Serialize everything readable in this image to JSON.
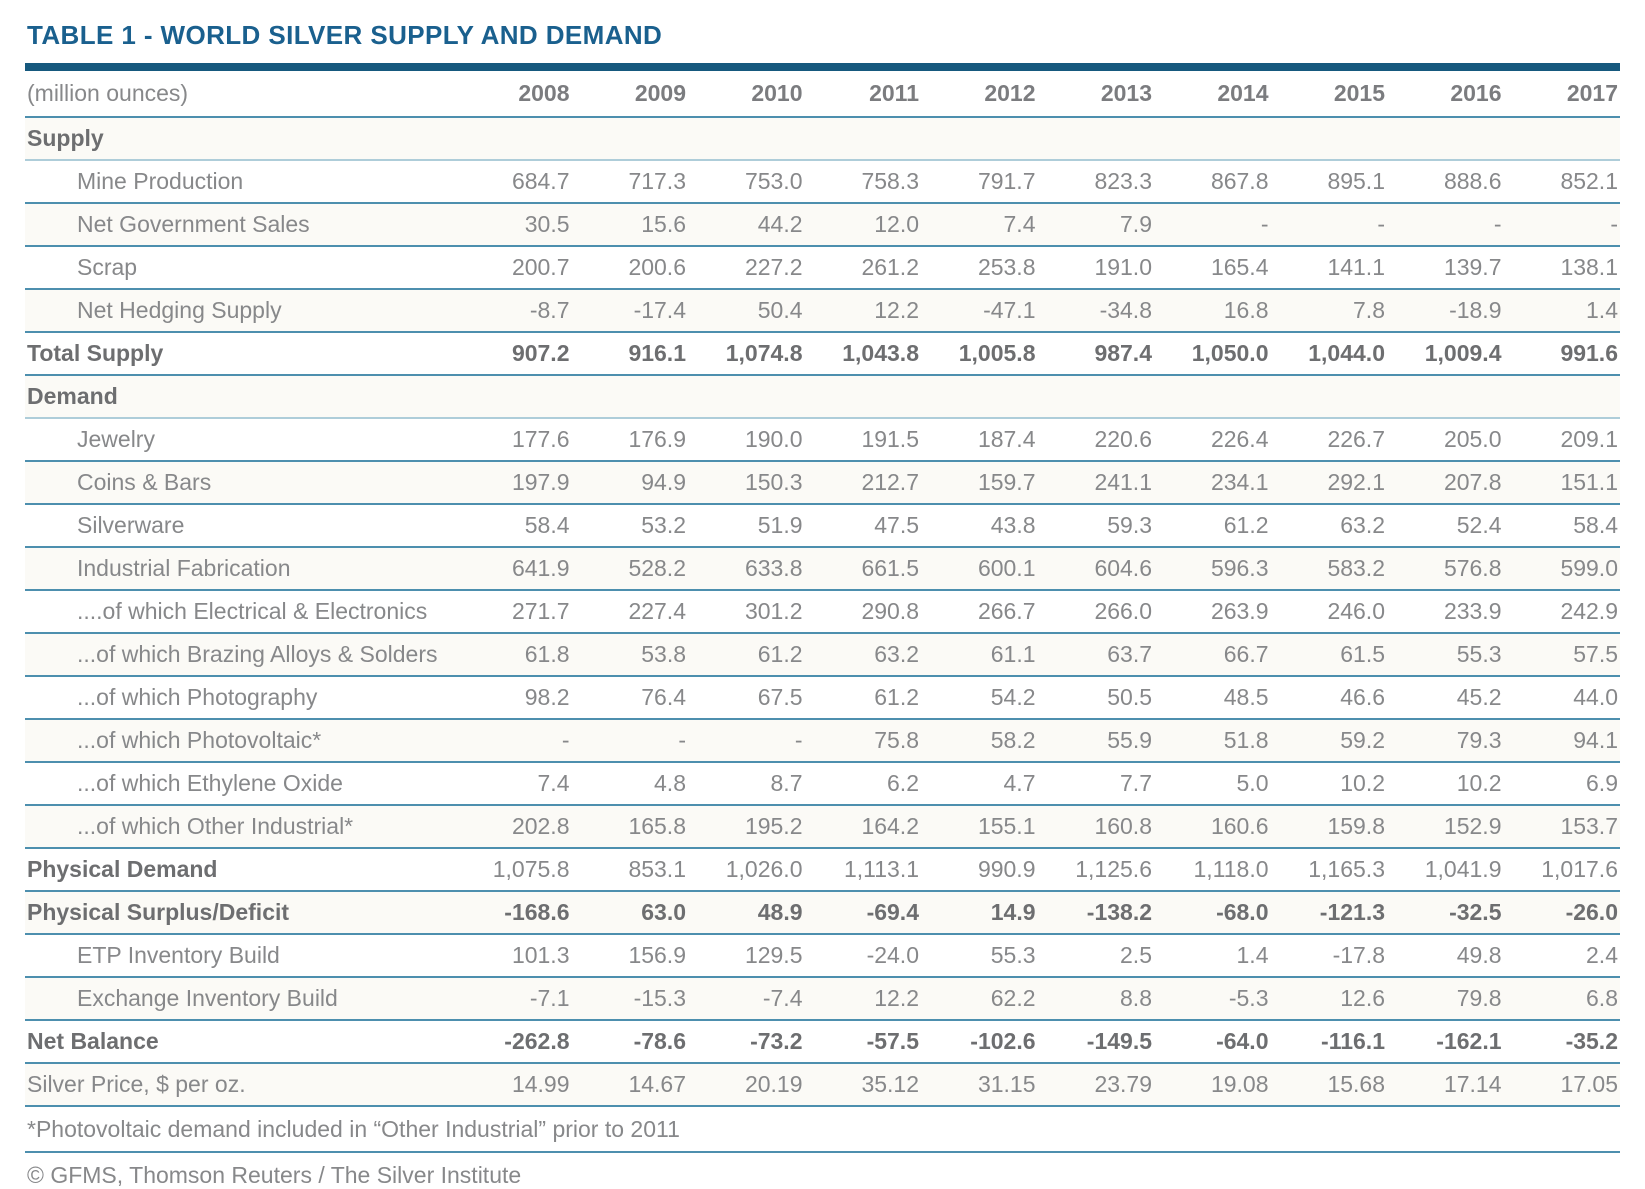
{
  "title": "TABLE 1 - WORLD SILVER SUPPLY AND DEMAND",
  "colors": {
    "title_blue": "#1a608e",
    "heavy_rule_blue": "#16597e",
    "row_line_blue": "#4d8fae",
    "section_line_blue": "#aecdd9",
    "text_gray": "#87888a",
    "bold_text_gray": "#6d6e70"
  },
  "footnote": "*Photovoltaic demand included in “Other Industrial” prior to 2011",
  "copyright": "© GFMS, Thomson Reuters / The Silver Institute",
  "chart_data": {
    "type": "table",
    "title": "TABLE 1 - WORLD SILVER SUPPLY AND DEMAND",
    "unit_label": "(million ounces)",
    "columns": [
      "2008",
      "2009",
      "2010",
      "2011",
      "2012",
      "2013",
      "2014",
      "2015",
      "2016",
      "2017"
    ],
    "rows": [
      {
        "label": "Supply",
        "style": "section",
        "values": []
      },
      {
        "label": "Mine Production",
        "style": "sub",
        "values": [
          "684.7",
          "717.3",
          "753.0",
          "758.3",
          "791.7",
          "823.3",
          "867.8",
          "895.1",
          "888.6",
          "852.1"
        ]
      },
      {
        "label": "Net Government Sales",
        "style": "sub",
        "values": [
          "30.5",
          "15.6",
          "44.2",
          "12.0",
          "7.4",
          "7.9",
          "-",
          "-",
          "-",
          "-"
        ]
      },
      {
        "label": "Scrap",
        "style": "sub",
        "values": [
          "200.7",
          "200.6",
          "227.2",
          "261.2",
          "253.8",
          "191.0",
          "165.4",
          "141.1",
          "139.7",
          "138.1"
        ]
      },
      {
        "label": "Net Hedging Supply",
        "style": "sub",
        "values": [
          "-8.7",
          "-17.4",
          "50.4",
          "12.2",
          "-47.1",
          "-34.8",
          "16.8",
          "7.8",
          "-18.9",
          "1.4"
        ]
      },
      {
        "label": "Total Supply",
        "style": "total",
        "values": [
          "907.2",
          "916.1",
          "1,074.8",
          "1,043.8",
          "1,005.8",
          "987.4",
          "1,050.0",
          "1,044.0",
          "1,009.4",
          "991.6"
        ]
      },
      {
        "label": "Demand",
        "style": "section",
        "values": []
      },
      {
        "label": "Jewelry",
        "style": "sub",
        "values": [
          "177.6",
          "176.9",
          "190.0",
          "191.5",
          "187.4",
          "220.6",
          "226.4",
          "226.7",
          "205.0",
          "209.1"
        ]
      },
      {
        "label": "Coins & Bars",
        "style": "sub",
        "values": [
          "197.9",
          "94.9",
          "150.3",
          "212.7",
          "159.7",
          "241.1",
          "234.1",
          "292.1",
          "207.8",
          "151.1"
        ]
      },
      {
        "label": "Silverware",
        "style": "sub",
        "values": [
          "58.4",
          "53.2",
          "51.9",
          "47.5",
          "43.8",
          "59.3",
          "61.2",
          "63.2",
          "52.4",
          "58.4"
        ]
      },
      {
        "label": "Industrial Fabrication",
        "style": "sub",
        "values": [
          "641.9",
          "528.2",
          "633.8",
          "661.5",
          "600.1",
          "604.6",
          "596.3",
          "583.2",
          "576.8",
          "599.0"
        ]
      },
      {
        "label": "....of which Electrical & Electronics",
        "style": "sub",
        "values": [
          "271.7",
          "227.4",
          "301.2",
          "290.8",
          "266.7",
          "266.0",
          "263.9",
          "246.0",
          "233.9",
          "242.9"
        ]
      },
      {
        "label": "...of which Brazing Alloys & Solders",
        "style": "sub",
        "values": [
          "61.8",
          "53.8",
          "61.2",
          "63.2",
          "61.1",
          "63.7",
          "66.7",
          "61.5",
          "55.3",
          "57.5"
        ]
      },
      {
        "label": "...of which Photography",
        "style": "sub",
        "values": [
          "98.2",
          "76.4",
          "67.5",
          "61.2",
          "54.2",
          "50.5",
          "48.5",
          "46.6",
          "45.2",
          "44.0"
        ]
      },
      {
        "label": "...of which Photovoltaic*",
        "style": "sub",
        "values": [
          "-",
          "-",
          "-",
          "75.8",
          "58.2",
          "55.9",
          "51.8",
          "59.2",
          "79.3",
          "94.1"
        ]
      },
      {
        "label": "...of which Ethylene Oxide",
        "style": "sub",
        "values": [
          "7.4",
          "4.8",
          "8.7",
          "6.2",
          "4.7",
          "7.7",
          "5.0",
          "10.2",
          "10.2",
          "6.9"
        ]
      },
      {
        "label": "...of which Other Industrial*",
        "style": "sub",
        "values": [
          "202.8",
          "165.8",
          "195.2",
          "164.2",
          "155.1",
          "160.8",
          "160.6",
          "159.8",
          "152.9",
          "153.7"
        ]
      },
      {
        "label": "Physical Demand",
        "style": "totalLabel",
        "values": [
          "1,075.8",
          "853.1",
          "1,026.0",
          "1,113.1",
          "990.9",
          "1,125.6",
          "1,118.0",
          "1,165.3",
          "1,041.9",
          "1,017.6"
        ]
      },
      {
        "label": "Physical Surplus/Deficit",
        "style": "total",
        "values": [
          "-168.6",
          "63.0",
          "48.9",
          "-69.4",
          "14.9",
          "-138.2",
          "-68.0",
          "-121.3",
          "-32.5",
          "-26.0"
        ]
      },
      {
        "label": "ETP Inventory Build",
        "style": "sub",
        "values": [
          "101.3",
          "156.9",
          "129.5",
          "-24.0",
          "55.3",
          "2.5",
          "1.4",
          "-17.8",
          "49.8",
          "2.4"
        ]
      },
      {
        "label": "Exchange Inventory Build",
        "style": "sub",
        "values": [
          "-7.1",
          "-15.3",
          "-7.4",
          "12.2",
          "62.2",
          "8.8",
          "-5.3",
          "12.6",
          "79.8",
          "6.8"
        ]
      },
      {
        "label": "Net Balance",
        "style": "total",
        "values": [
          "-262.8",
          "-78.6",
          "-73.2",
          "-57.5",
          "-102.6",
          "-149.5",
          "-64.0",
          "-116.1",
          "-162.1",
          "-35.2"
        ]
      },
      {
        "label": "Silver Price, $ per oz.",
        "style": "plain",
        "values": [
          "14.99",
          "14.67",
          "20.19",
          "35.12",
          "31.15",
          "23.79",
          "19.08",
          "15.68",
          "17.14",
          "17.05"
        ]
      }
    ]
  }
}
